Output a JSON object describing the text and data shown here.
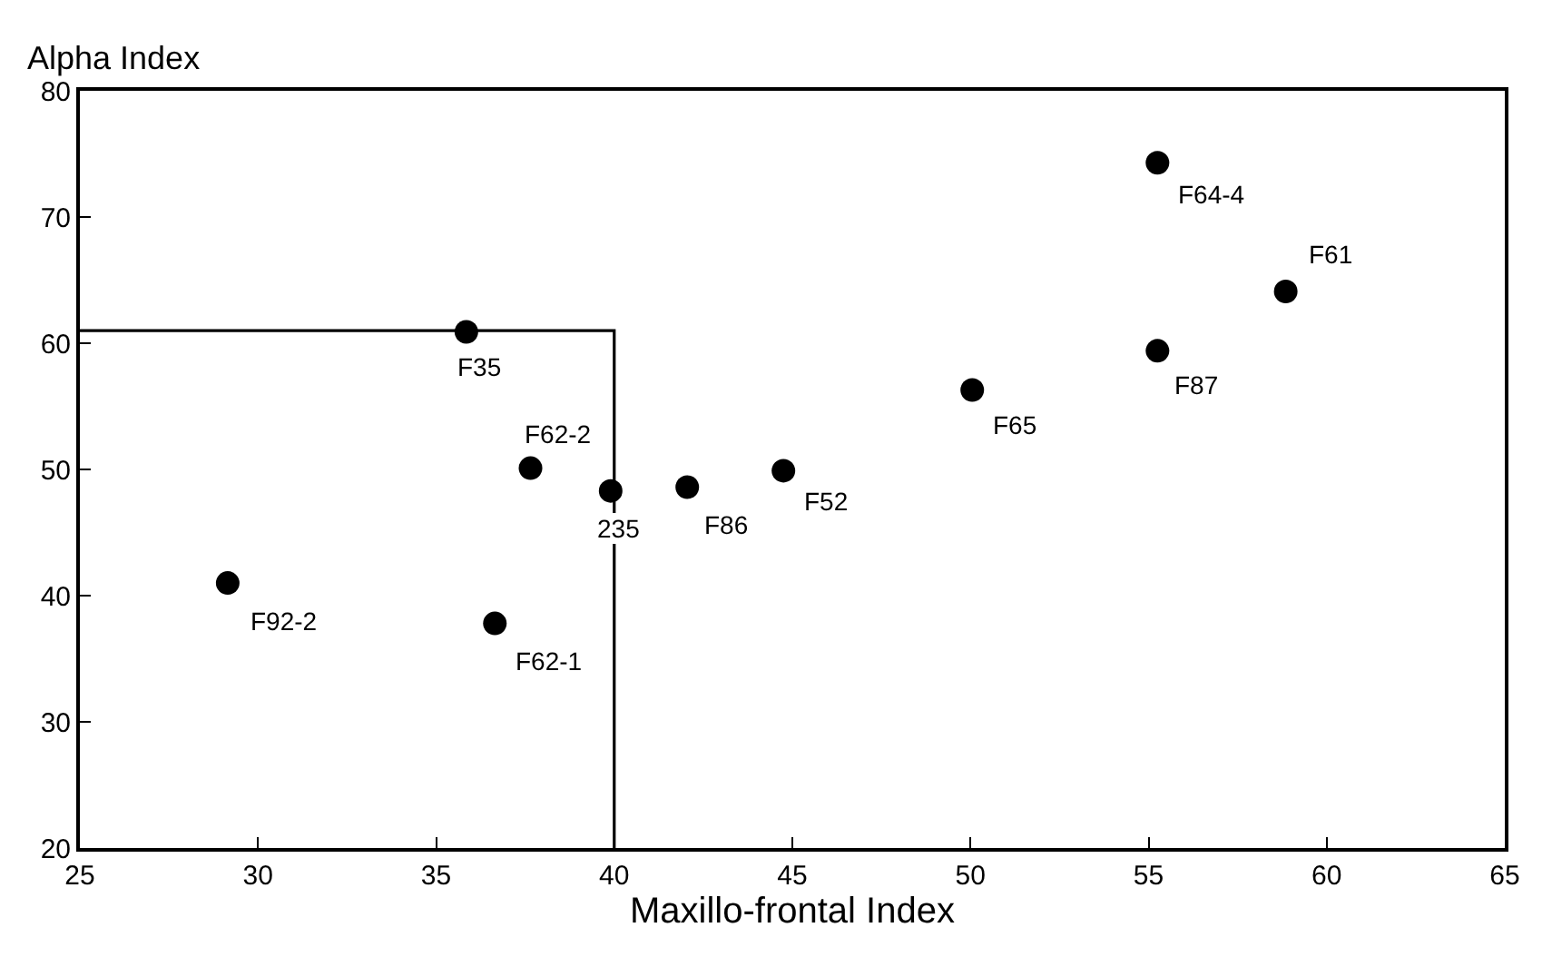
{
  "chart_data": {
    "type": "scatter",
    "xlabel": "Maxillo-frontal Index",
    "ylabel": "Alpha Index",
    "xlim": [
      25,
      65
    ],
    "xticks": [
      25,
      30,
      35,
      40,
      45,
      50,
      55,
      60,
      65
    ],
    "ylim": [
      20,
      80
    ],
    "yticks": [
      20,
      30,
      40,
      50,
      60,
      70,
      80
    ],
    "marker": "circle",
    "series": [
      {
        "type": "line",
        "color": "#000000",
        "marker": "none",
        "line_style": "solid",
        "x": [
          25,
          40,
          40
        ],
        "values": [
          61,
          61,
          20
        ]
      },
      {
        "color": "#000000",
        "x": [
          29.15,
          35.85,
          36.65,
          37.65,
          39.9,
          42.05,
          44.75,
          50.05,
          55.25,
          55.25,
          58.85
        ],
        "values": [
          41.0,
          60.9,
          37.8,
          50.1,
          48.3,
          48.6,
          49.9,
          56.3,
          74.3,
          59.4,
          64.1
        ]
      }
    ],
    "annotations": [
      {
        "text": "F92-2",
        "x": 29.15,
        "y": 41.0
      },
      {
        "text": "F35",
        "x": 35.85,
        "y": 60.9
      },
      {
        "text": "F62-1",
        "x": 36.65,
        "y": 37.8
      },
      {
        "text": "F62-2",
        "x": 37.65,
        "y": 50.1
      },
      {
        "text": "235",
        "x": 39.9,
        "y": 48.3
      },
      {
        "text": "F86",
        "x": 42.05,
        "y": 48.6
      },
      {
        "text": "F52",
        "x": 44.75,
        "y": 49.9
      },
      {
        "text": "F65",
        "x": 50.05,
        "y": 56.3
      },
      {
        "text": "F64-4",
        "x": 55.25,
        "y": 74.3
      },
      {
        "text": "F87",
        "x": 55.25,
        "y": 59.4
      },
      {
        "text": "F61",
        "x": 58.85,
        "y": 64.1
      }
    ]
  }
}
